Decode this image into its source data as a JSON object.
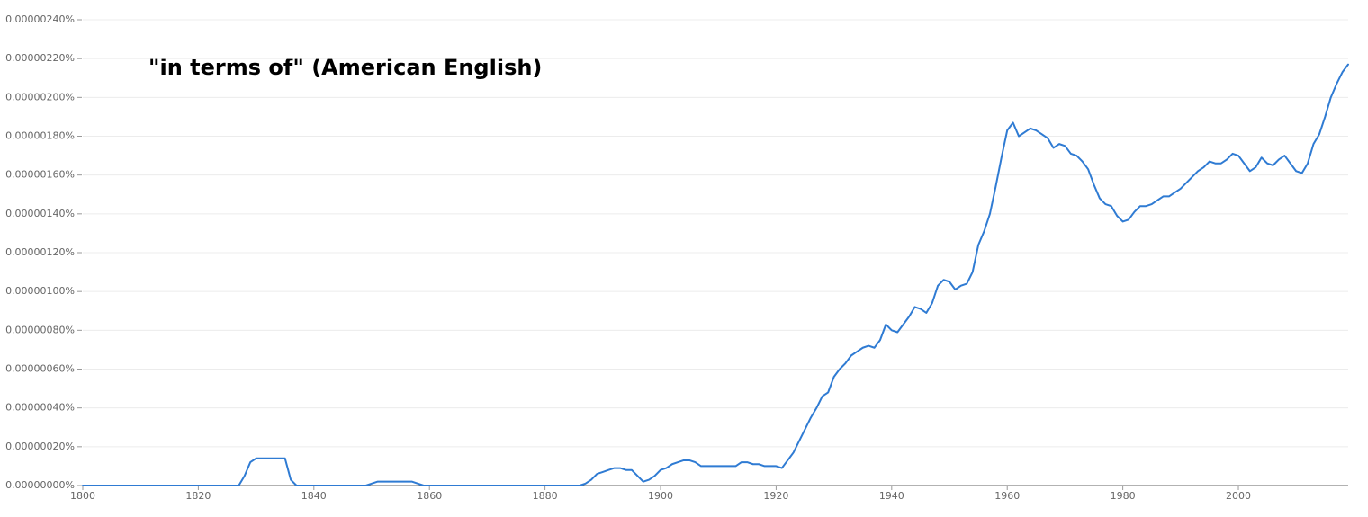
{
  "chart_data": {
    "type": "line",
    "title": "\"in terms of\" (American English)",
    "color": "#2f7bd3",
    "grid": true,
    "xlim": [
      1800,
      2019
    ],
    "xticks": [
      1800,
      1820,
      1840,
      1860,
      1880,
      1900,
      1920,
      1940,
      1960,
      1980,
      2000
    ],
    "ylim": [
      0,
      2.4e-06
    ],
    "yticks": [
      {
        "value": 0,
        "label": "0.00000000%"
      },
      {
        "value": 2e-07,
        "label": "0.00000020%"
      },
      {
        "value": 4e-07,
        "label": "0.00000040%"
      },
      {
        "value": 6e-07,
        "label": "0.00000060%"
      },
      {
        "value": 8e-07,
        "label": "0.00000080%"
      },
      {
        "value": 1e-06,
        "label": "0.00000100%"
      },
      {
        "value": 1.2e-06,
        "label": "0.00000120%"
      },
      {
        "value": 1.4e-06,
        "label": "0.00000140%"
      },
      {
        "value": 1.6e-06,
        "label": "0.00000160%"
      },
      {
        "value": 1.8e-06,
        "label": "0.00000180%"
      },
      {
        "value": 2e-06,
        "label": "0.00000200%"
      },
      {
        "value": 2.2e-06,
        "label": "0.00000220%"
      },
      {
        "value": 2.4e-06,
        "label": "0.00000240%"
      }
    ],
    "x": [
      1800,
      1827,
      1828,
      1829,
      1830,
      1835,
      1836,
      1837,
      1849,
      1850,
      1851,
      1857,
      1858,
      1859,
      1886,
      1887,
      1888,
      1889,
      1890,
      1891,
      1892,
      1893,
      1894,
      1895,
      1896,
      1897,
      1898,
      1899,
      1900,
      1901,
      1902,
      1903,
      1904,
      1905,
      1906,
      1907,
      1908,
      1909,
      1910,
      1911,
      1912,
      1913,
      1914,
      1915,
      1916,
      1917,
      1918,
      1919,
      1920,
      1921,
      1922,
      1923,
      1924,
      1925,
      1926,
      1927,
      1928,
      1929,
      1930,
      1931,
      1932,
      1933,
      1934,
      1935,
      1936,
      1937,
      1938,
      1939,
      1940,
      1941,
      1942,
      1943,
      1944,
      1945,
      1946,
      1947,
      1948,
      1949,
      1950,
      1951,
      1952,
      1953,
      1954,
      1955,
      1956,
      1957,
      1958,
      1959,
      1960,
      1961,
      1962,
      1963,
      1964,
      1965,
      1966,
      1967,
      1968,
      1969,
      1970,
      1971,
      1972,
      1973,
      1974,
      1975,
      1976,
      1977,
      1978,
      1979,
      1980,
      1981,
      1982,
      1983,
      1984,
      1985,
      1986,
      1987,
      1988,
      1989,
      1990,
      1991,
      1992,
      1993,
      1994,
      1995,
      1996,
      1997,
      1998,
      1999,
      2000,
      2001,
      2002,
      2003,
      2004,
      2005,
      2006,
      2007,
      2008,
      2009,
      2010,
      2011,
      2012,
      2013,
      2014,
      2015,
      2016,
      2017,
      2018,
      2019
    ],
    "values": [
      0,
      0,
      5e-08,
      1.2e-07,
      1.4e-07,
      1.4e-07,
      3e-08,
      0,
      0,
      1e-08,
      2e-08,
      2e-08,
      1e-08,
      0,
      0,
      1e-08,
      3e-08,
      6e-08,
      7e-08,
      8e-08,
      9e-08,
      9e-08,
      8e-08,
      8e-08,
      5e-08,
      2e-08,
      3e-08,
      5e-08,
      8e-08,
      9e-08,
      1.1e-07,
      1.2e-07,
      1.3e-07,
      1.3e-07,
      1.2e-07,
      1e-07,
      1e-07,
      1e-07,
      1e-07,
      1e-07,
      1e-07,
      1e-07,
      1.2e-07,
      1.2e-07,
      1.1e-07,
      1.1e-07,
      1e-07,
      1e-07,
      1e-07,
      9e-08,
      1.3e-07,
      1.7e-07,
      2.3e-07,
      2.9e-07,
      3.5e-07,
      4e-07,
      4.6e-07,
      4.8e-07,
      5.6e-07,
      6e-07,
      6.3e-07,
      6.7e-07,
      6.9e-07,
      7.1e-07,
      7.2e-07,
      7.1e-07,
      7.5e-07,
      8.3e-07,
      8e-07,
      7.9e-07,
      8.3e-07,
      8.7e-07,
      9.2e-07,
      9.1e-07,
      8.9e-07,
      9.4e-07,
      1.03e-06,
      1.06e-06,
      1.05e-06,
      1.01e-06,
      1.03e-06,
      1.04e-06,
      1.1e-06,
      1.24e-06,
      1.31e-06,
      1.4e-06,
      1.54e-06,
      1.69e-06,
      1.83e-06,
      1.87e-06,
      1.8e-06,
      1.82e-06,
      1.84e-06,
      1.83e-06,
      1.81e-06,
      1.79e-06,
      1.74e-06,
      1.76e-06,
      1.75e-06,
      1.71e-06,
      1.7e-06,
      1.67e-06,
      1.63e-06,
      1.55e-06,
      1.48e-06,
      1.45e-06,
      1.44e-06,
      1.39e-06,
      1.36e-06,
      1.37e-06,
      1.41e-06,
      1.44e-06,
      1.44e-06,
      1.45e-06,
      1.47e-06,
      1.49e-06,
      1.49e-06,
      1.51e-06,
      1.53e-06,
      1.56e-06,
      1.59e-06,
      1.62e-06,
      1.64e-06,
      1.67e-06,
      1.66e-06,
      1.66e-06,
      1.68e-06,
      1.71e-06,
      1.7e-06,
      1.66e-06,
      1.62e-06,
      1.64e-06,
      1.69e-06,
      1.66e-06,
      1.65e-06,
      1.68e-06,
      1.7e-06,
      1.66e-06,
      1.62e-06,
      1.61e-06,
      1.66e-06,
      1.76e-06,
      1.81e-06,
      1.9e-06,
      2e-06,
      2.07e-06,
      2.13e-06,
      2.17e-06
    ]
  }
}
